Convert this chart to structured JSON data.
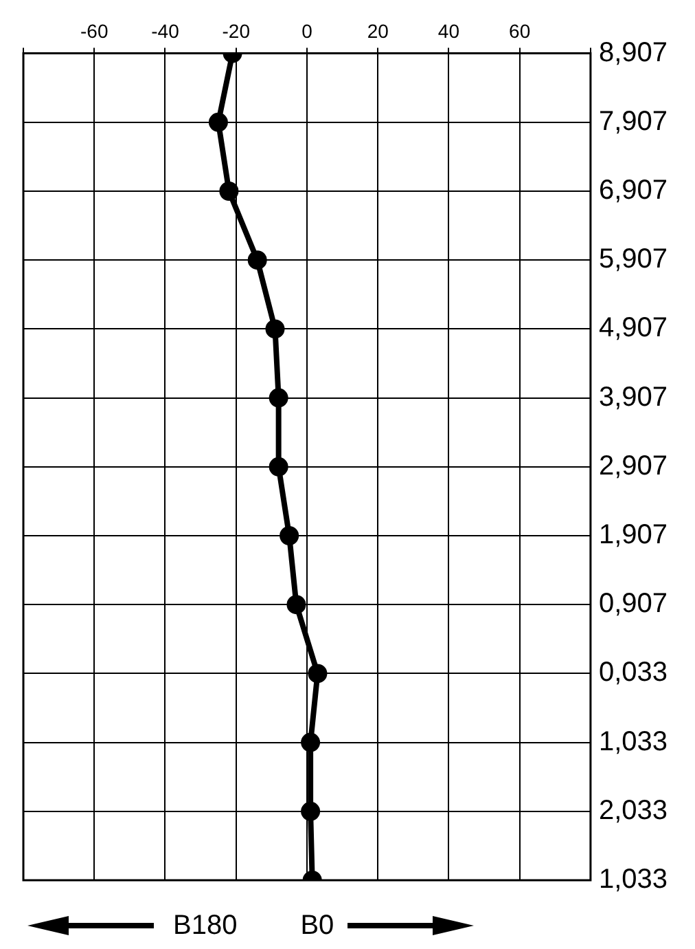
{
  "chart_data": {
    "type": "line",
    "orientation": "horizontal",
    "categories": [
      "8,907",
      "7,907",
      "6,907",
      "5,907",
      "4,907",
      "3,907",
      "2,907",
      "1,907",
      "0,907",
      "0,033",
      "1,033",
      "2,033",
      "1,033"
    ],
    "series": [
      {
        "color": "#000000",
        "values": [
          -21,
          -25,
          -22,
          -14,
          -9,
          -8,
          -8,
          -5,
          -3,
          3,
          1,
          1,
          1.5
        ]
      }
    ],
    "xlim": [
      -80,
      80
    ],
    "xticks": [
      -60,
      -40,
      -20,
      0,
      20,
      40,
      60
    ],
    "grid": true,
    "legend": false,
    "marker": "circle",
    "line_style": "solid",
    "annotations": [
      "B180",
      "B0"
    ]
  }
}
